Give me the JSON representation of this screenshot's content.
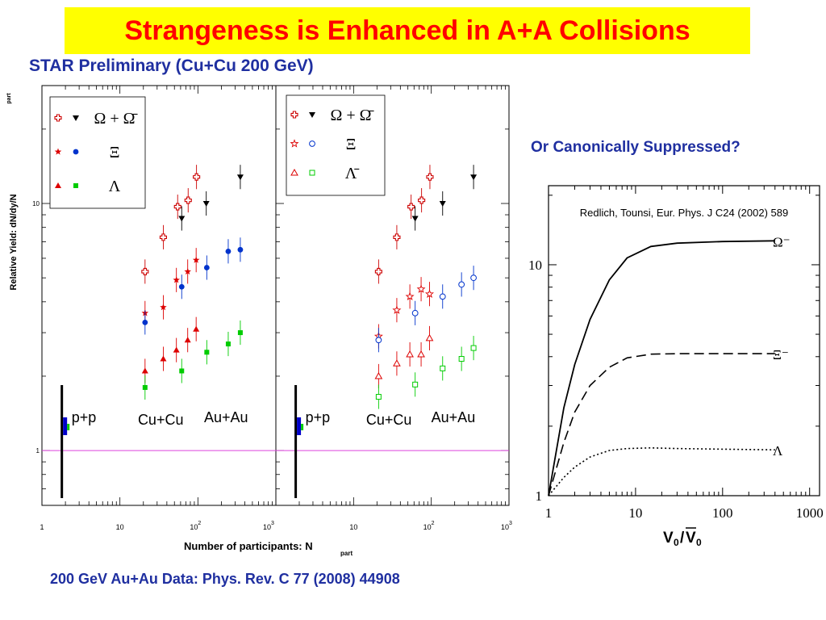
{
  "slide": {
    "title": "Strangeness is Enhanced in A+A Collisions",
    "subtitle": "STAR Preliminary (Cu+Cu 200 GeV)",
    "right_question": "Or Canonically Suppressed?",
    "reference": "200 GeV Au+Au Data: Phys. Rev. C 77 (2008) 44908",
    "colors": {
      "title_bg": "#ffff00",
      "title_text": "#ff0000",
      "text_blue": "#1f2fa0"
    }
  },
  "chart_data": [
    {
      "type": "scatter",
      "ylabel": "Relative Yield: dN/dy/N",
      "ylabel_sub": "part",
      "xlabel": "Number of participants: N",
      "xlabel_sub": "part",
      "xscale": "log",
      "yscale": "log",
      "xlim": [
        1,
        1000
      ],
      "ylim": [
        0.6,
        30
      ],
      "x_ticks": [
        {
          "b": "1",
          "e": ""
        },
        {
          "b": "10",
          "e": ""
        },
        {
          "b": "10",
          "e": "2"
        },
        {
          "b": "10",
          "e": "3"
        }
      ],
      "y_ticks": [
        {
          "v": 1,
          "t": "1"
        },
        {
          "v": 10,
          "t": "10"
        }
      ],
      "annotations": [
        "p+p",
        "Cu+Cu",
        "Au+Au"
      ],
      "legend": [
        {
          "label": "Ω + Ω̄",
          "markers": [
            "cross-open",
            "tri-down"
          ],
          "colors": [
            "#cc0000",
            "#000000"
          ]
        },
        {
          "label": "Ξ",
          "markers": [
            "star",
            "circle"
          ],
          "colors": [
            "#dd0000",
            "#0033cc"
          ]
        },
        {
          "label": "Λ",
          "markers": [
            "tri-up",
            "square"
          ],
          "colors": [
            "#dd0000",
            "#00cc00"
          ]
        }
      ],
      "legend_placement": "top-left",
      "series": [
        {
          "marker": "cross-open",
          "color": "#cc0000",
          "points": [
            [
              21,
              5.3
            ],
            [
              36,
              7.3
            ],
            [
              55,
              9.7
            ],
            [
              75,
              10.3
            ],
            [
              96,
              12.8
            ]
          ]
        },
        {
          "marker": "tri-down",
          "color": "#000000",
          "points": [
            [
              62,
              8.7
            ],
            [
              128,
              10.0
            ],
            [
              350,
              12.8
            ]
          ]
        },
        {
          "marker": "star",
          "color": "#dd0000",
          "points": [
            [
              21,
              3.6
            ],
            [
              36,
              3.8
            ],
            [
              53,
              4.9
            ],
            [
              74,
              5.3
            ],
            [
              95,
              5.9
            ]
          ]
        },
        {
          "marker": "circle",
          "color": "#0033cc",
          "points": [
            [
              21,
              3.3
            ],
            [
              62,
              4.6
            ],
            [
              130,
              5.5
            ],
            [
              245,
              6.4
            ],
            [
              350,
              6.5
            ]
          ]
        },
        {
          "marker": "tri-up",
          "color": "#dd0000",
          "points": [
            [
              21,
              2.1
            ],
            [
              36,
              2.35
            ],
            [
              53,
              2.55
            ],
            [
              74,
              2.8
            ],
            [
              95,
              3.1
            ]
          ]
        },
        {
          "marker": "square",
          "color": "#00cc00",
          "points": [
            [
              21,
              1.8
            ],
            [
              62,
              2.1
            ],
            [
              130,
              2.5
            ],
            [
              245,
              2.7
            ],
            [
              350,
              3.0
            ]
          ]
        }
      ]
    },
    {
      "type": "scatter",
      "xscale": "log",
      "yscale": "log",
      "xlim": [
        1,
        1000
      ],
      "ylim": [
        0.6,
        30
      ],
      "x_ticks": [
        {
          "b": "10",
          "e": ""
        },
        {
          "b": "10",
          "e": "2"
        },
        {
          "b": "10",
          "e": "3"
        }
      ],
      "annotations": [
        "p+p",
        "Cu+Cu",
        "Au+Au"
      ],
      "legend": [
        {
          "label": "Ω + Ω̄",
          "markers": [
            "cross-open",
            "tri-down"
          ],
          "colors": [
            "#cc0000",
            "#000000"
          ]
        },
        {
          "label": "Ξ",
          "markers": [
            "star-open",
            "circle-open"
          ],
          "colors": [
            "#dd0000",
            "#0033cc"
          ]
        },
        {
          "label": "Λ̄",
          "markers": [
            "tri-up-open",
            "square-open"
          ],
          "colors": [
            "#dd0000",
            "#00cc00"
          ]
        }
      ],
      "legend_placement": "top-left",
      "series": [
        {
          "marker": "cross-open",
          "color": "#cc0000",
          "points": [
            [
              21,
              5.3
            ],
            [
              36,
              7.3
            ],
            [
              55,
              9.7
            ],
            [
              75,
              10.3
            ],
            [
              96,
              12.8
            ]
          ]
        },
        {
          "marker": "tri-down",
          "color": "#000000",
          "points": [
            [
              62,
              8.7
            ],
            [
              140,
              10.0
            ],
            [
              350,
              12.8
            ]
          ]
        },
        {
          "marker": "star-open",
          "color": "#dd0000",
          "points": [
            [
              21,
              2.9
            ],
            [
              36,
              3.7
            ],
            [
              53,
              4.2
            ],
            [
              74,
              4.5
            ],
            [
              95,
              4.3
            ]
          ]
        },
        {
          "marker": "circle-open",
          "color": "#0033cc",
          "points": [
            [
              21,
              2.8
            ],
            [
              62,
              3.6
            ],
            [
              140,
              4.2
            ],
            [
              245,
              4.7
            ],
            [
              350,
              5.0
            ]
          ]
        },
        {
          "marker": "tri-up-open",
          "color": "#dd0000",
          "points": [
            [
              21,
              2.0
            ],
            [
              36,
              2.25
            ],
            [
              53,
              2.45
            ],
            [
              74,
              2.45
            ],
            [
              95,
              2.85
            ]
          ]
        },
        {
          "marker": "square-open",
          "color": "#00cc00",
          "points": [
            [
              21,
              1.65
            ],
            [
              62,
              1.85
            ],
            [
              140,
              2.15
            ],
            [
              245,
              2.35
            ],
            [
              350,
              2.6
            ]
          ]
        }
      ]
    },
    {
      "type": "line",
      "title": "Redlich, Tounsi, Eur. Phys. J C24 (2002) 589",
      "xlabel": "V0/V̄0",
      "xscale": "log",
      "yscale": "log",
      "xlim": [
        1,
        1300
      ],
      "ylim": [
        1,
        22
      ],
      "x_ticks": [
        "1",
        "10",
        "100",
        "1000"
      ],
      "y_ticks": [
        {
          "v": 1,
          "t": "1"
        },
        {
          "v": 10,
          "t": "10"
        }
      ],
      "series": [
        {
          "name": "Ω⁻",
          "style": "solid",
          "x": [
            1,
            1.5,
            2,
            3,
            5,
            8,
            15,
            30,
            100,
            400
          ],
          "y": [
            1.0,
            2.4,
            3.7,
            5.8,
            8.6,
            10.7,
            12.0,
            12.4,
            12.6,
            12.7
          ]
        },
        {
          "name": "Ξ⁻",
          "style": "dashed",
          "x": [
            1,
            1.5,
            2,
            3,
            5,
            8,
            15,
            30,
            100,
            400
          ],
          "y": [
            1.0,
            1.7,
            2.3,
            3.0,
            3.6,
            3.95,
            4.1,
            4.12,
            4.12,
            4.12
          ]
        },
        {
          "name": "Λ",
          "style": "dotted",
          "x": [
            1,
            1.5,
            2,
            3,
            5,
            8,
            15,
            30,
            100,
            400
          ],
          "y": [
            1.0,
            1.2,
            1.33,
            1.47,
            1.57,
            1.6,
            1.61,
            1.6,
            1.59,
            1.58
          ]
        }
      ]
    }
  ]
}
